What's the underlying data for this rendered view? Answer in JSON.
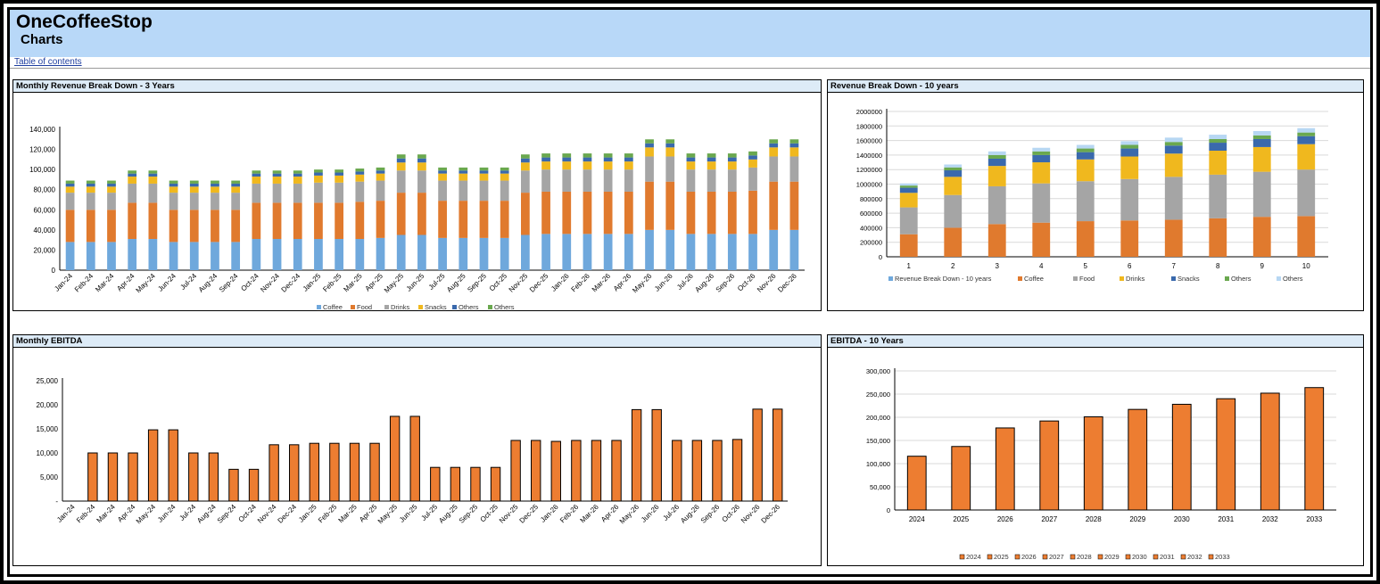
{
  "header": {
    "title": "OneCoffeeStop",
    "subtitle": "Charts"
  },
  "toc_link": "Table of contents",
  "colors": {
    "coffee": "#6fa8dc",
    "food": "#e07a2e",
    "drinks": "#a5a5a5",
    "snacks": "#f0b81e",
    "others1": "#3a69ac",
    "others2": "#6aa84f",
    "others3": "#b7d7f3",
    "ebitda": "#ed7d31"
  },
  "panels": {
    "monthly_revenue": "Monthly Revenue Break Down - 3 Years",
    "revenue_10y": "Revenue Break Down - 10 years",
    "monthly_ebitda": "Monthly EBITDA",
    "ebitda_10y": "EBITDA - 10 Years"
  },
  "chart_data": [
    {
      "id": "monthly_revenue",
      "type": "bar",
      "stacked": true,
      "categories": [
        "Jan-24",
        "Feb-24",
        "Mar-24",
        "Apr-24",
        "May-24",
        "Jun-24",
        "Jul-24",
        "Aug-24",
        "Sep-24",
        "Oct-24",
        "Nov-24",
        "Dec-24",
        "Jan-25",
        "Feb-25",
        "Mar-25",
        "Apr-25",
        "May-25",
        "Jun-25",
        "Jul-25",
        "Aug-25",
        "Sep-25",
        "Oct-25",
        "Nov-25",
        "Dec-25",
        "Jan-26",
        "Feb-26",
        "Mar-26",
        "Apr-26",
        "May-26",
        "Jun-26",
        "Jul-26",
        "Aug-26",
        "Sep-26",
        "Oct-26",
        "Nov-26",
        "Dec-26"
      ],
      "yticks": [
        "0",
        "20,000",
        "40,000",
        "60,000",
        "80,000",
        "100,000",
        "120,000",
        "140,000"
      ],
      "ylim": [
        0,
        140000
      ],
      "legend": "bottom",
      "series": [
        {
          "name": "Coffee",
          "color": "coffee",
          "values": [
            28000,
            28000,
            28000,
            31000,
            31000,
            28000,
            28000,
            28000,
            28000,
            31000,
            31000,
            31000,
            31000,
            31000,
            31000,
            32000,
            35000,
            35000,
            32000,
            32000,
            32000,
            32000,
            35000,
            36000,
            36000,
            36000,
            36000,
            36000,
            40000,
            40000,
            36000,
            36000,
            36000,
            36000,
            40000,
            40000
          ]
        },
        {
          "name": "Food",
          "color": "food",
          "values": [
            32000,
            32000,
            32000,
            36000,
            36000,
            32000,
            32000,
            32000,
            32000,
            36000,
            36000,
            36000,
            36000,
            36000,
            37000,
            37000,
            42000,
            42000,
            37000,
            37000,
            37000,
            37000,
            42000,
            42000,
            42000,
            42000,
            42000,
            42000,
            48000,
            48000,
            42000,
            42000,
            42000,
            43000,
            48000,
            48000
          ]
        },
        {
          "name": "Drinks",
          "color": "drinks",
          "values": [
            17000,
            17000,
            17000,
            19000,
            19000,
            17000,
            17000,
            17000,
            17000,
            19000,
            19000,
            19000,
            20000,
            20000,
            20000,
            20000,
            22000,
            22000,
            20000,
            20000,
            20000,
            20000,
            22000,
            22000,
            22000,
            22000,
            22000,
            22000,
            25000,
            25000,
            22000,
            22000,
            22000,
            23000,
            25000,
            25000
          ]
        },
        {
          "name": "Snacks",
          "color": "snacks",
          "values": [
            6000,
            6000,
            6000,
            7000,
            7000,
            6000,
            6000,
            6000,
            6000,
            7000,
            7000,
            7000,
            7000,
            7000,
            7000,
            7000,
            8000,
            8000,
            7000,
            7000,
            7000,
            7000,
            8000,
            8000,
            8000,
            8000,
            8000,
            8000,
            9000,
            9000,
            8000,
            8000,
            8000,
            8000,
            9000,
            9000
          ]
        },
        {
          "name": "Others",
          "color": "others1",
          "values": [
            3000,
            3000,
            3000,
            3000,
            3000,
            3000,
            3000,
            3000,
            3000,
            3000,
            3000,
            3000,
            3000,
            3000,
            3000,
            3000,
            4000,
            4000,
            3000,
            3000,
            3000,
            3000,
            4000,
            4000,
            4000,
            4000,
            4000,
            4000,
            4000,
            4000,
            4000,
            4000,
            4000,
            4000,
            4000,
            4000
          ]
        },
        {
          "name": "Others",
          "color": "others2",
          "values": [
            3000,
            3000,
            3000,
            3000,
            3000,
            3000,
            3000,
            3000,
            3000,
            3000,
            3000,
            3000,
            3000,
            3000,
            3000,
            3000,
            4000,
            4000,
            3000,
            3000,
            3000,
            3000,
            4000,
            4000,
            4000,
            4000,
            4000,
            4000,
            4000,
            4000,
            4000,
            4000,
            4000,
            4000,
            4000,
            4000
          ]
        }
      ]
    },
    {
      "id": "revenue_10y",
      "type": "bar",
      "stacked": true,
      "categories": [
        "1",
        "2",
        "3",
        "4",
        "5",
        "6",
        "7",
        "8",
        "9",
        "10"
      ],
      "yticks": [
        "0",
        "200000",
        "400000",
        "600000",
        "800000",
        "1000000",
        "1200000",
        "1400000",
        "1600000",
        "1800000",
        "2000000"
      ],
      "ylim": [
        0,
        2000000
      ],
      "legend": "bottom",
      "legend_entries": [
        {
          "name": "Revenue Break Down - 10 years",
          "color": "coffee"
        },
        {
          "name": "Coffee",
          "color": "food"
        },
        {
          "name": "Food",
          "color": "drinks"
        },
        {
          "name": "Drinks",
          "color": "snacks"
        },
        {
          "name": "Snacks",
          "color": "others1"
        },
        {
          "name": "Others",
          "color": "others2"
        },
        {
          "name": "Others",
          "color": "others3"
        }
      ],
      "series": [
        {
          "name": "Coffee",
          "color": "food",
          "values": [
            310000,
            400000,
            450000,
            470000,
            490000,
            500000,
            510000,
            530000,
            550000,
            560000
          ]
        },
        {
          "name": "Food",
          "color": "drinks",
          "values": [
            370000,
            450000,
            520000,
            540000,
            550000,
            570000,
            590000,
            600000,
            620000,
            640000
          ]
        },
        {
          "name": "Drinks",
          "color": "snacks",
          "values": [
            200000,
            250000,
            280000,
            290000,
            300000,
            310000,
            320000,
            330000,
            340000,
            350000
          ]
        },
        {
          "name": "Snacks",
          "color": "others1",
          "values": [
            70000,
            90000,
            100000,
            100000,
            100000,
            110000,
            110000,
            110000,
            110000,
            110000
          ]
        },
        {
          "name": "Others",
          "color": "others2",
          "values": [
            30000,
            40000,
            50000,
            50000,
            50000,
            50000,
            50000,
            50000,
            50000,
            50000
          ]
        },
        {
          "name": "Others",
          "color": "others3",
          "values": [
            30000,
            40000,
            50000,
            50000,
            50000,
            50000,
            60000,
            60000,
            60000,
            60000
          ]
        }
      ]
    },
    {
      "id": "monthly_ebitda",
      "type": "bar",
      "categories": [
        "Jan-24",
        "Feb-24",
        "Mar-24",
        "Apr-24",
        "May-24",
        "Jun-24",
        "Jul-24",
        "Aug-24",
        "Sep-24",
        "Oct-24",
        "Nov-24",
        "Dec-24",
        "Jan-25",
        "Feb-25",
        "Mar-25",
        "Apr-25",
        "May-25",
        "Jun-25",
        "Jul-25",
        "Aug-25",
        "Sep-25",
        "Oct-25",
        "Nov-25",
        "Dec-25",
        "Jan-26",
        "Feb-26",
        "Mar-26",
        "Apr-26",
        "May-26",
        "Jun-26",
        "Jul-26",
        "Aug-26",
        "Sep-26",
        "Oct-26",
        "Nov-26",
        "Dec-26"
      ],
      "values": [
        0,
        10000,
        10000,
        10000,
        14800,
        14800,
        10000,
        10000,
        6600,
        6600,
        11700,
        11700,
        12000,
        12000,
        12000,
        12000,
        17600,
        17600,
        7000,
        7000,
        7000,
        7000,
        12600,
        12600,
        12400,
        12600,
        12600,
        12600,
        19000,
        19000,
        12600,
        12600,
        12600,
        12800,
        19100,
        19100
      ],
      "yticks": [
        "-",
        "5,000",
        "10,000",
        "15,000",
        "20,000",
        "25,000"
      ],
      "ylim": [
        0,
        25000
      ]
    },
    {
      "id": "ebitda_10y",
      "type": "bar",
      "categories": [
        "2024",
        "2025",
        "2026",
        "2027",
        "2028",
        "2029",
        "2030",
        "2031",
        "2032",
        "2033"
      ],
      "values": [
        116000,
        137000,
        177000,
        192000,
        201000,
        217000,
        228000,
        240000,
        252000,
        264000
      ],
      "yticks": [
        "0",
        "50,000",
        "100,000",
        "150,000",
        "200,000",
        "250,000",
        "300,000"
      ],
      "ylim": [
        0,
        300000
      ],
      "legend": "bottom",
      "legend_entries": [
        "2024",
        "2025",
        "2026",
        "2027",
        "2028",
        "2029",
        "2030",
        "2031",
        "2032",
        "2033"
      ]
    }
  ]
}
